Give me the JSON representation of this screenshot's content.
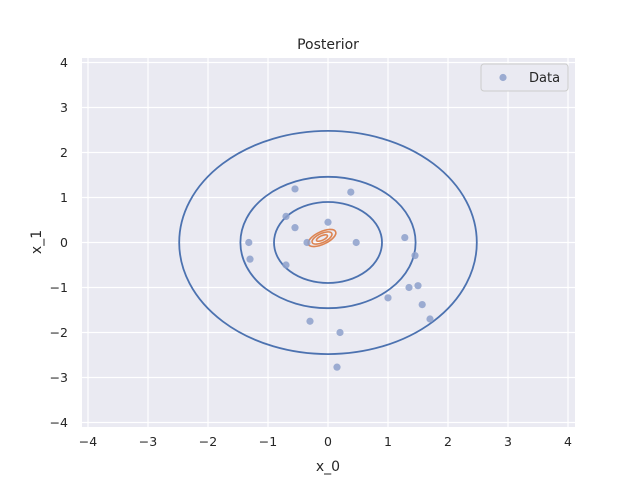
{
  "chart_data": {
    "type": "scatter",
    "title": "Posterior",
    "xlabel": "x_0",
    "ylabel": "x_1",
    "xlim": [
      -4.2,
      4.2
    ],
    "ylim": [
      -4.2,
      4.2
    ],
    "xticks": [
      -4,
      -3,
      -2,
      -1,
      0,
      1,
      2,
      3,
      4
    ],
    "yticks": [
      -4,
      -3,
      -2,
      -1,
      0,
      1,
      2,
      3,
      4
    ],
    "grid": true,
    "legend": {
      "position": "top-right",
      "entries": [
        "Data"
      ]
    },
    "colors": {
      "background": "#eaeaf2",
      "grid": "#ffffff",
      "data_points": "#8da0cb",
      "prior_contours": "#4c72b0",
      "posterior_contours": "#dd8452"
    },
    "series": [
      {
        "name": "Data",
        "kind": "scatter",
        "points": [
          [
            -0.55,
            1.19
          ],
          [
            0.38,
            1.12
          ],
          [
            -0.7,
            0.58
          ],
          [
            -0.55,
            0.33
          ],
          [
            0.0,
            0.45
          ],
          [
            -1.32,
            0.0
          ],
          [
            -0.35,
            0.0
          ],
          [
            0.47,
            0.0
          ],
          [
            1.28,
            0.11
          ],
          [
            -1.3,
            -0.37
          ],
          [
            -0.7,
            -0.5
          ],
          [
            1.45,
            -0.29
          ],
          [
            1.5,
            -0.96
          ],
          [
            1.35,
            -1.0
          ],
          [
            1.0,
            -1.23
          ],
          [
            1.57,
            -1.38
          ],
          [
            1.7,
            -1.7
          ],
          [
            -0.3,
            -1.75
          ],
          [
            0.2,
            -2.0
          ],
          [
            0.15,
            -2.77
          ]
        ]
      }
    ],
    "prior_contours": {
      "center": [
        0,
        0
      ],
      "radii": [
        0.9,
        1.46,
        2.48
      ]
    },
    "posterior_contours": {
      "center": [
        -0.1,
        0.1
      ],
      "semi_axes": [
        [
          0.1,
          0.05
        ],
        [
          0.18,
          0.1
        ],
        [
          0.25,
          0.14
        ]
      ],
      "rotation_deg": 25
    }
  }
}
